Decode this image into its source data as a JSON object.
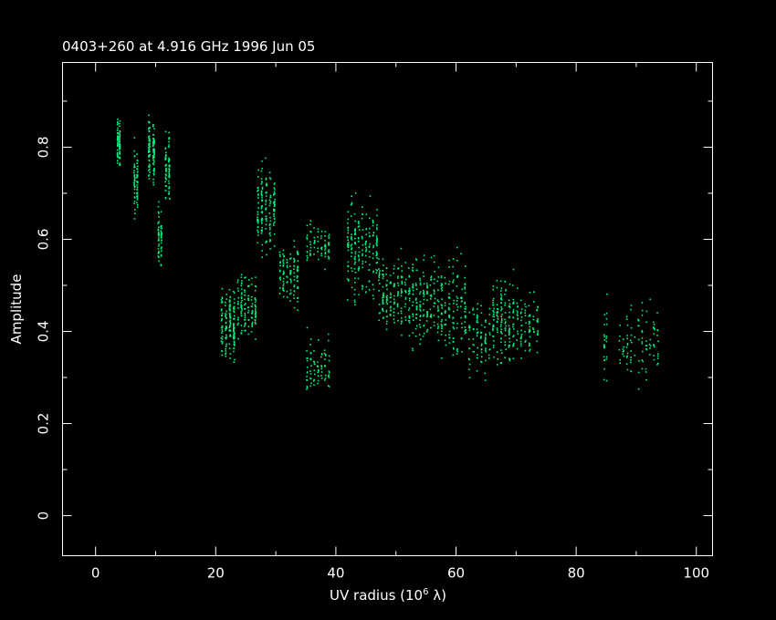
{
  "chart_data": {
    "type": "scatter",
    "title": "0403+260 at 4.916 GHz 1996 Jun 05",
    "xlabel": "UV radius  (10",
    "xlabel_exp": "6",
    "xlabel_unit": " λ)",
    "ylabel": "Amplitude",
    "xlim": [
      -5.5,
      102.7
    ],
    "ylim": [
      -0.087,
      0.984
    ],
    "x_ticks": [
      0,
      20,
      40,
      60,
      80,
      100
    ],
    "x_tick_labels": [
      "0",
      "20",
      "40",
      "60",
      "80",
      "100"
    ],
    "y_ticks": [
      0,
      0.2,
      0.4,
      0.6,
      0.8
    ],
    "y_tick_labels": [
      "0",
      "0.2",
      "0.4",
      "0.6",
      "0.8"
    ],
    "grid": false,
    "point_color": "#00f080",
    "background_color": "#000000",
    "axis_color": "#ffffff",
    "clusters": [
      {
        "x": [
          3.5,
          4.2
        ],
        "y": [
          0.74,
          0.88
        ],
        "n": 90
      },
      {
        "x": [
          6.3,
          7.2
        ],
        "y": [
          0.63,
          0.83
        ],
        "n": 70
      },
      {
        "x": [
          8.7,
          10.2
        ],
        "y": [
          0.7,
          0.89
        ],
        "n": 120
      },
      {
        "x": [
          10.3,
          11.2
        ],
        "y": [
          0.52,
          0.7
        ],
        "n": 60
      },
      {
        "x": [
          11.5,
          12.6
        ],
        "y": [
          0.65,
          0.86
        ],
        "n": 70
      },
      {
        "x": [
          20.8,
          23.5
        ],
        "y": [
          0.3,
          0.52
        ],
        "n": 160
      },
      {
        "x": [
          23.5,
          27.0
        ],
        "y": [
          0.36,
          0.55
        ],
        "n": 130
      },
      {
        "x": [
          26.8,
          30.2
        ],
        "y": [
          0.55,
          0.79
        ],
        "n": 160
      },
      {
        "x": [
          30.5,
          34.0
        ],
        "y": [
          0.42,
          0.65
        ],
        "n": 110
      },
      {
        "x": [
          35.0,
          39.2
        ],
        "y": [
          0.52,
          0.66
        ],
        "n": 70
      },
      {
        "x": [
          35.0,
          39.2
        ],
        "y": [
          0.23,
          0.43
        ],
        "n": 80
      },
      {
        "x": [
          41.8,
          47.2
        ],
        "y": [
          0.43,
          0.73
        ],
        "n": 200
      },
      {
        "x": [
          47.0,
          52.0
        ],
        "y": [
          0.37,
          0.6
        ],
        "n": 160
      },
      {
        "x": [
          52.0,
          58.0
        ],
        "y": [
          0.33,
          0.59
        ],
        "n": 200
      },
      {
        "x": [
          58.0,
          62.0
        ],
        "y": [
          0.3,
          0.6
        ],
        "n": 120
      },
      {
        "x": [
          62.0,
          66.0
        ],
        "y": [
          0.28,
          0.5
        ],
        "n": 90
      },
      {
        "x": [
          66.0,
          70.0
        ],
        "y": [
          0.29,
          0.56
        ],
        "n": 150
      },
      {
        "x": [
          70.0,
          74.0
        ],
        "y": [
          0.32,
          0.51
        ],
        "n": 90
      },
      {
        "x": [
          84.5,
          85.3
        ],
        "y": [
          0.25,
          0.51
        ],
        "n": 25
      },
      {
        "x": [
          87.0,
          94.0
        ],
        "y": [
          0.26,
          0.5
        ],
        "n": 100
      }
    ]
  }
}
